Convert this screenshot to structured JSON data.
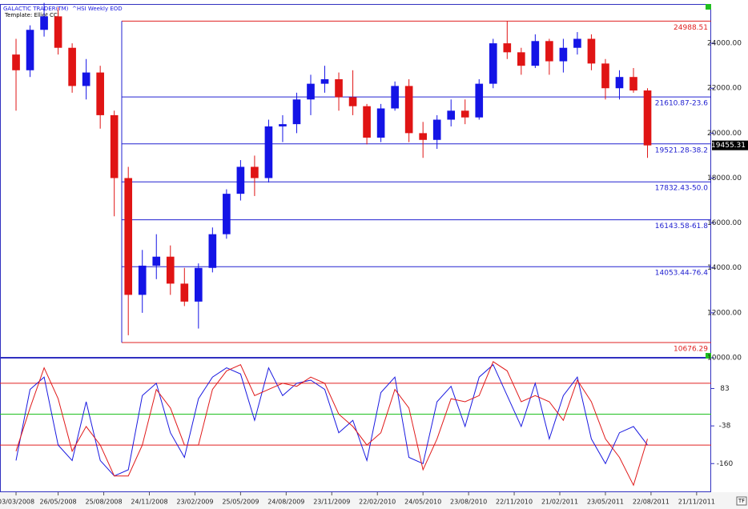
{
  "chart_data": [
    {
      "type": "candlestick",
      "header": [
        "GALACTIC TRADER(TM)",
        "^HSI Weekly EOD"
      ],
      "subtitle": "Template: Elliot CCI",
      "x": [
        "03/03/2008",
        "31/03/2008",
        "28/04/2008",
        "26/05/2008",
        "23/06/2008",
        "21/07/2008",
        "18/08/2008",
        "15/09/2008",
        "13/10/2008",
        "10/11/2008",
        "08/12/2008",
        "05/01/2009",
        "02/02/2009",
        "02/03/2009",
        "30/03/2009",
        "27/04/2009",
        "25/05/2009",
        "22/06/2009",
        "20/07/2009",
        "17/08/2009",
        "14/09/2009",
        "12/10/2009",
        "09/11/2009",
        "07/12/2009",
        "04/01/2010",
        "01/02/2010",
        "01/03/2010",
        "29/03/2010",
        "26/04/2010",
        "24/05/2010",
        "21/06/2010",
        "19/07/2010",
        "16/08/2010",
        "13/09/2010",
        "11/10/2010",
        "08/11/2010",
        "06/12/2010",
        "03/01/2011",
        "31/01/2011",
        "28/02/2011",
        "28/03/2011",
        "25/04/2011",
        "23/05/2011",
        "20/06/2011",
        "18/07/2011",
        "15/08/2011"
      ],
      "open": [
        23500,
        22800,
        24600,
        25200,
        23800,
        22100,
        22700,
        20800,
        18000,
        12800,
        14100,
        14500,
        13300,
        12500,
        14000,
        15500,
        17300,
        18500,
        18000,
        20300,
        20400,
        21500,
        22200,
        22400,
        21600,
        21200,
        19800,
        21100,
        22100,
        20000,
        19700,
        20600,
        21000,
        20700,
        22200,
        24000,
        23600,
        23000,
        24100,
        23200,
        23800,
        24200,
        23100,
        22000,
        22500,
        21900
      ],
      "high": [
        24200,
        24800,
        25800,
        25600,
        24000,
        23300,
        23000,
        21000,
        18500,
        14800,
        15500,
        15000,
        14000,
        14200,
        15800,
        17500,
        18800,
        19000,
        20600,
        20800,
        21800,
        22600,
        23000,
        22700,
        22800,
        21300,
        21300,
        22300,
        22400,
        20500,
        20800,
        21500,
        21500,
        22400,
        24200,
        24988,
        23800,
        24400,
        24200,
        24200,
        24500,
        24400,
        23300,
        22800,
        22900,
        22000
      ],
      "low": [
        21000,
        22500,
        24300,
        23500,
        21800,
        21500,
        20200,
        16300,
        11000,
        12000,
        13500,
        12800,
        12300,
        11300,
        13800,
        15300,
        17000,
        17200,
        17800,
        19600,
        20000,
        20800,
        21800,
        21000,
        20800,
        19500,
        19600,
        21000,
        19600,
        18900,
        19300,
        20300,
        20400,
        20600,
        22000,
        23300,
        22600,
        22900,
        22600,
        22700,
        23500,
        22800,
        21500,
        21500,
        21800,
        18900
      ],
      "close": [
        22800,
        24600,
        25200,
        23800,
        22100,
        22700,
        20800,
        18000,
        12800,
        14100,
        14500,
        13300,
        12500,
        14000,
        15500,
        17300,
        18500,
        18000,
        20300,
        20400,
        21500,
        22200,
        22400,
        21600,
        21200,
        19800,
        21100,
        22100,
        20000,
        19700,
        20600,
        21000,
        20700,
        22200,
        24000,
        23600,
        23000,
        24100,
        23200,
        23800,
        24200,
        23100,
        22000,
        22500,
        21900,
        19455
      ],
      "up_color": "#1414e6",
      "down_color": "#e01414",
      "xlim": [
        "31/01/2008",
        "20/12/2011"
      ],
      "ylim": [
        10000,
        25750
      ],
      "yticks": [
        {
          "value": 24000,
          "label": "24000.00"
        },
        {
          "value": 22000,
          "label": "22000.00"
        },
        {
          "value": 20000,
          "label": "20000.00"
        },
        {
          "value": 18000,
          "label": "18000.00"
        },
        {
          "value": 16000,
          "label": "16000.00"
        },
        {
          "value": 14000,
          "label": "14000.00"
        },
        {
          "value": 12000,
          "label": "12000.00"
        },
        {
          "value": 10000,
          "label": "10000.00"
        }
      ],
      "levels": [
        {
          "value": 24988.51,
          "label": "24988.51",
          "color": "#e02020"
        },
        {
          "value": 21610.87,
          "label": "21610.87-23.6",
          "color": "#2020d0"
        },
        {
          "value": 19521.28,
          "label": "19521.28-38.2",
          "color": "#2020d0"
        },
        {
          "value": 17832.43,
          "label": "17832.43-50.0",
          "color": "#2020d0"
        },
        {
          "value": 16143.58,
          "label": "16143.58-61.8",
          "color": "#2020d0"
        },
        {
          "value": 14053.44,
          "label": "14053.44-76.4",
          "color": "#2020d0"
        },
        {
          "value": 10676.29,
          "label": "10676.29",
          "color": "#e02020"
        }
      ],
      "last_price": {
        "value": 19455.31,
        "label": "19455.31"
      }
    },
    {
      "type": "line",
      "x": [
        "03/03/2008",
        "31/03/2008",
        "28/04/2008",
        "26/05/2008",
        "23/06/2008",
        "21/07/2008",
        "18/08/2008",
        "15/09/2008",
        "13/10/2008",
        "10/11/2008",
        "08/12/2008",
        "05/01/2009",
        "02/02/2009",
        "02/03/2009",
        "30/03/2009",
        "27/04/2009",
        "25/05/2009",
        "22/06/2009",
        "20/07/2009",
        "17/08/2009",
        "14/09/2009",
        "12/10/2009",
        "09/11/2009",
        "07/12/2009",
        "04/01/2010",
        "01/02/2010",
        "01/03/2010",
        "29/03/2010",
        "26/04/2010",
        "24/05/2010",
        "21/06/2010",
        "19/07/2010",
        "16/08/2010",
        "13/09/2010",
        "11/10/2010",
        "08/11/2010",
        "06/12/2010",
        "03/01/2011",
        "31/01/2011",
        "28/02/2011",
        "28/03/2011",
        "25/04/2011",
        "23/05/2011",
        "20/06/2011",
        "18/07/2011",
        "15/08/2011"
      ],
      "series": [
        {
          "color": "#1a1ae0",
          "values": [
            -150,
            80,
            120,
            -100,
            -150,
            40,
            -150,
            -200,
            -180,
            60,
            100,
            -60,
            -140,
            50,
            120,
            150,
            130,
            -20,
            150,
            60,
            100,
            110,
            80,
            -60,
            -20,
            -150,
            70,
            120,
            -140,
            -160,
            40,
            90,
            -40,
            120,
            160,
            60,
            -40,
            100,
            -80,
            60,
            120,
            -80,
            -160,
            -60,
            -40,
            -100
          ]
        },
        {
          "color": "#e01a1a",
          "values": [
            -120,
            20,
            150,
            50,
            -120,
            -40,
            -100,
            -200,
            -200,
            -100,
            80,
            20,
            -100,
            -100,
            80,
            140,
            160,
            60,
            80,
            100,
            90,
            120,
            100,
            0,
            -40,
            -100,
            -60,
            80,
            20,
            -180,
            -80,
            50,
            40,
            60,
            170,
            140,
            40,
            60,
            40,
            -20,
            110,
            40,
            -80,
            -140,
            -230,
            -80
          ]
        }
      ],
      "xlim": [
        "31/01/2008",
        "20/12/2011"
      ],
      "ylim": [
        -250,
        180
      ],
      "yticks": [
        83,
        -38,
        -160
      ],
      "hlines": [
        {
          "value": 100,
          "color": "#e02020"
        },
        {
          "value": 0,
          "color": "#20c020"
        },
        {
          "value": -100,
          "color": "#e02020"
        }
      ],
      "xticks": [
        "03/03/2008",
        "26/05/2008",
        "25/08/2008",
        "24/11/2008",
        "23/02/2009",
        "25/05/2009",
        "24/08/2009",
        "23/11/2009",
        "22/02/2010",
        "24/05/2010",
        "23/08/2010",
        "22/11/2010",
        "21/02/2011",
        "23/05/2011",
        "22/08/2011",
        "21/11/2011"
      ]
    }
  ]
}
